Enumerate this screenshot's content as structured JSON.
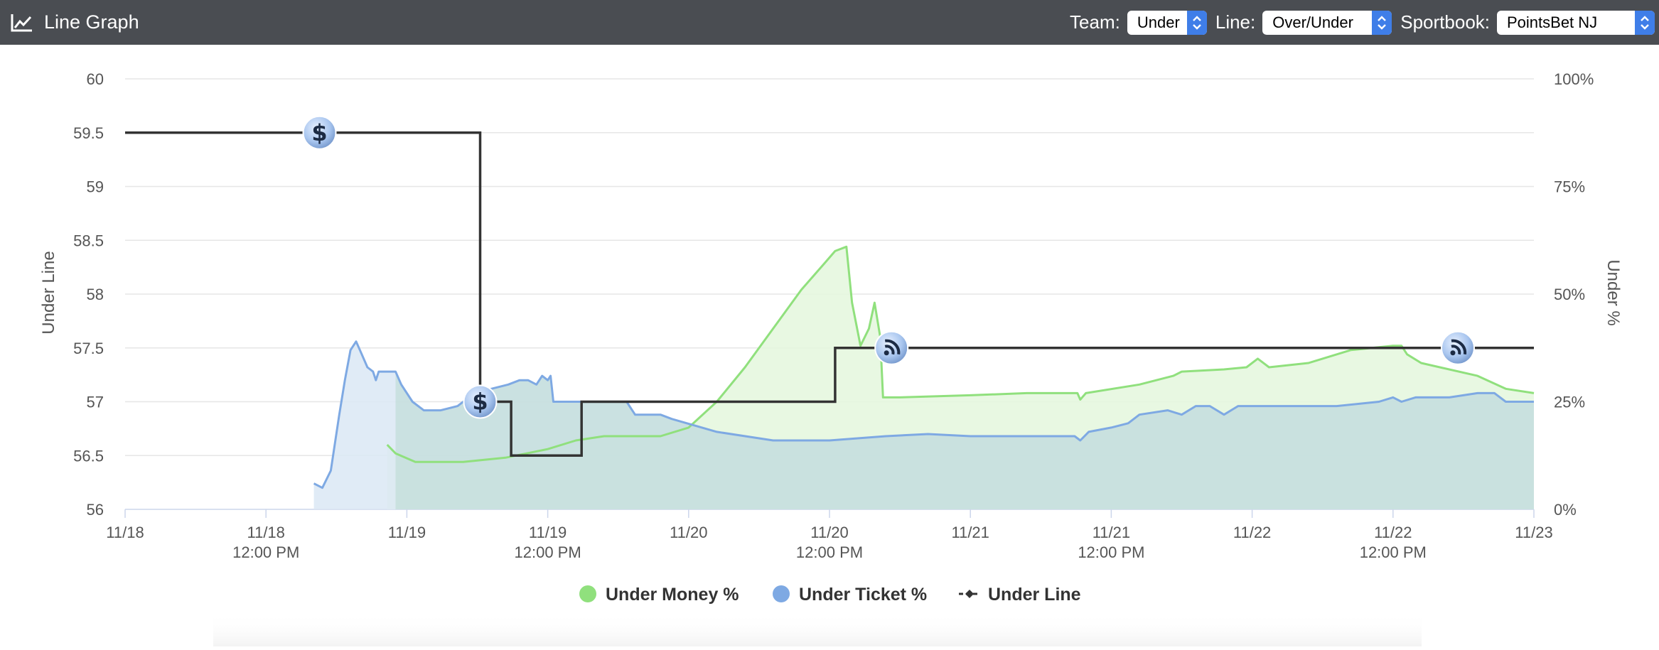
{
  "header": {
    "title": "Line Graph",
    "icon": "line-chart-icon",
    "team_label": "Team:",
    "team_value": "Under",
    "line_label": "Line:",
    "line_value": "Over/Under",
    "sportsbook_label": "Sportbook:",
    "sportsbook_value": "PointsBet NJ"
  },
  "chart_data": {
    "type": "line",
    "xlim": [
      0,
      5
    ],
    "x_ticks": [
      {
        "x": 0,
        "l1": "11/18",
        "l2": ""
      },
      {
        "x": 0.5,
        "l1": "11/18",
        "l2": "12:00 PM"
      },
      {
        "x": 1,
        "l1": "11/19",
        "l2": ""
      },
      {
        "x": 1.5,
        "l1": "11/19",
        "l2": "12:00 PM"
      },
      {
        "x": 2,
        "l1": "11/20",
        "l2": ""
      },
      {
        "x": 2.5,
        "l1": "11/20",
        "l2": "12:00 PM"
      },
      {
        "x": 3,
        "l1": "11/21",
        "l2": ""
      },
      {
        "x": 3.5,
        "l1": "11/21",
        "l2": "12:00 PM"
      },
      {
        "x": 4,
        "l1": "11/22",
        "l2": ""
      },
      {
        "x": 4.5,
        "l1": "11/22",
        "l2": "12:00 PM"
      },
      {
        "x": 5,
        "l1": "11/23",
        "l2": ""
      }
    ],
    "y_left": {
      "label": "Under Line",
      "min": 56,
      "max": 60,
      "ticks": [
        "56",
        "56.5",
        "57",
        "57.5",
        "58",
        "58.5",
        "59",
        "59.5",
        "60"
      ]
    },
    "y_right": {
      "label": "Under %",
      "min": 0,
      "max": 100,
      "ticks": [
        "0%",
        "25%",
        "50%",
        "75%",
        "100%"
      ]
    },
    "series": [
      {
        "name": "Under Money %",
        "color": "#90e07d",
        "fill": "#e4f7dd",
        "points": [
          [
            0.93,
            15
          ],
          [
            0.96,
            13
          ],
          [
            1.03,
            11
          ],
          [
            1.2,
            11
          ],
          [
            1.35,
            12
          ],
          [
            1.5,
            14
          ],
          [
            1.6,
            16
          ],
          [
            1.7,
            17
          ],
          [
            1.8,
            17
          ],
          [
            1.9,
            17
          ],
          [
            2.0,
            19
          ],
          [
            2.1,
            25
          ],
          [
            2.2,
            33
          ],
          [
            2.3,
            42
          ],
          [
            2.4,
            51
          ],
          [
            2.48,
            57
          ],
          [
            2.52,
            60
          ],
          [
            2.56,
            61
          ],
          [
            2.58,
            48
          ],
          [
            2.61,
            38
          ],
          [
            2.64,
            42
          ],
          [
            2.66,
            48
          ],
          [
            2.68,
            40
          ],
          [
            2.69,
            26
          ],
          [
            2.75,
            26
          ],
          [
            3.0,
            26.5
          ],
          [
            3.2,
            27
          ],
          [
            3.38,
            27
          ],
          [
            3.39,
            25.5
          ],
          [
            3.41,
            27
          ],
          [
            3.6,
            29
          ],
          [
            3.72,
            31
          ],
          [
            3.75,
            32
          ],
          [
            3.9,
            32.5
          ],
          [
            3.98,
            33
          ],
          [
            4.02,
            35
          ],
          [
            4.06,
            33
          ],
          [
            4.2,
            34
          ],
          [
            4.35,
            37
          ],
          [
            4.5,
            38
          ],
          [
            4.53,
            38
          ],
          [
            4.55,
            36
          ],
          [
            4.6,
            34
          ],
          [
            4.8,
            31
          ],
          [
            4.9,
            28
          ],
          [
            5.0,
            27
          ]
        ]
      },
      {
        "name": "Under Ticket %",
        "color": "#7ea9e3",
        "fill": "#dbe7f5",
        "points": [
          [
            0.67,
            6
          ],
          [
            0.7,
            5
          ],
          [
            0.73,
            9
          ],
          [
            0.76,
            22
          ],
          [
            0.78,
            30
          ],
          [
            0.8,
            37
          ],
          [
            0.82,
            39
          ],
          [
            0.84,
            36
          ],
          [
            0.86,
            33
          ],
          [
            0.88,
            32
          ],
          [
            0.89,
            30
          ],
          [
            0.9,
            32
          ],
          [
            0.92,
            32
          ],
          [
            0.96,
            32
          ],
          [
            0.98,
            29
          ],
          [
            1.02,
            25
          ],
          [
            1.06,
            23
          ],
          [
            1.12,
            23
          ],
          [
            1.18,
            24
          ],
          [
            1.24,
            27
          ],
          [
            1.3,
            28
          ],
          [
            1.36,
            29
          ],
          [
            1.4,
            30
          ],
          [
            1.43,
            30
          ],
          [
            1.46,
            29
          ],
          [
            1.48,
            31
          ],
          [
            1.5,
            30
          ],
          [
            1.51,
            31
          ],
          [
            1.52,
            25
          ],
          [
            1.6,
            25
          ],
          [
            1.7,
            25
          ],
          [
            1.78,
            25
          ],
          [
            1.81,
            22
          ],
          [
            1.86,
            22
          ],
          [
            1.9,
            22
          ],
          [
            1.94,
            21
          ],
          [
            2.1,
            18
          ],
          [
            2.3,
            16
          ],
          [
            2.5,
            16
          ],
          [
            2.7,
            17
          ],
          [
            2.85,
            17.5
          ],
          [
            3.0,
            17
          ],
          [
            3.2,
            17
          ],
          [
            3.37,
            17
          ],
          [
            3.39,
            16
          ],
          [
            3.42,
            18
          ],
          [
            3.5,
            19
          ],
          [
            3.56,
            20
          ],
          [
            3.6,
            22
          ],
          [
            3.7,
            23
          ],
          [
            3.75,
            22
          ],
          [
            3.8,
            24
          ],
          [
            3.85,
            24
          ],
          [
            3.9,
            22
          ],
          [
            3.95,
            24
          ],
          [
            4.1,
            24
          ],
          [
            4.3,
            24
          ],
          [
            4.45,
            25
          ],
          [
            4.5,
            26
          ],
          [
            4.53,
            25
          ],
          [
            4.58,
            26
          ],
          [
            4.7,
            26
          ],
          [
            4.8,
            27
          ],
          [
            4.86,
            27
          ],
          [
            4.9,
            25
          ],
          [
            4.95,
            25
          ],
          [
            5.0,
            25
          ]
        ]
      },
      {
        "name": "Under Line",
        "color": "#333333",
        "shape": "step",
        "points": [
          [
            0,
            59.5
          ],
          [
            1.26,
            59.5
          ],
          [
            1.26,
            57
          ],
          [
            1.37,
            57
          ],
          [
            1.37,
            56.5
          ],
          [
            1.62,
            56.5
          ],
          [
            1.62,
            57
          ],
          [
            2.52,
            57
          ],
          [
            2.52,
            57.5
          ],
          [
            5.0,
            57.5
          ]
        ]
      }
    ],
    "markers": [
      {
        "type": "dollar-icon",
        "x": 0.69,
        "y": 59.5
      },
      {
        "type": "dollar-icon",
        "x": 1.26,
        "y": 57
      },
      {
        "type": "rss-icon",
        "x": 2.72,
        "y": 57.5
      },
      {
        "type": "rss-icon",
        "x": 4.73,
        "y": 57.5
      }
    ],
    "legend_position": "bottom-center",
    "grid": true
  }
}
